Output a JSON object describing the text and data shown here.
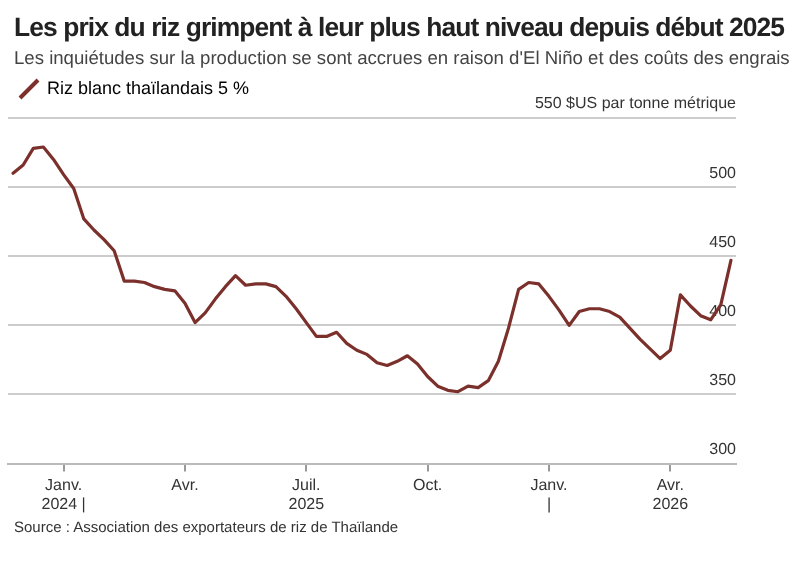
{
  "chart_data": {
    "type": "line",
    "title": "Les prix du riz grimpent à leur plus haut niveau depuis début 2025",
    "subtitle": "Les inquiétudes sur la production se sont accrues en raison d'El Niño et des coûts des engrais",
    "annotations": [
      "Source : Association des exportateurs de riz de Thaïlande"
    ],
    "categories": [
      null,
      null,
      null,
      null,
      null,
      "Janv.\n2024 |",
      null,
      null,
      null,
      null,
      null,
      null,
      null,
      null,
      null,
      null,
      null,
      "Avr.",
      null,
      null,
      null,
      null,
      null,
      null,
      null,
      null,
      null,
      null,
      null,
      "Juil.\n2025",
      null,
      null,
      null,
      null,
      null,
      null,
      null,
      null,
      null,
      null,
      null,
      "Oct.",
      null,
      null,
      null,
      null,
      null,
      null,
      null,
      null,
      null,
      null,
      null,
      "Janv.\n|",
      null,
      null,
      null,
      null,
      null,
      null,
      null,
      null,
      null,
      null,
      null,
      "Avr.\n2026",
      null,
      null,
      null,
      null,
      null,
      null
    ],
    "series": [
      {
        "name": "Riz blanc thaïlandais 5 %",
        "color": "#7b302b",
        "values": [
          510,
          516,
          528,
          529,
          520,
          509,
          499,
          477,
          469,
          462,
          454,
          432,
          432,
          431,
          428,
          426,
          425,
          416,
          402,
          409,
          419,
          428,
          436,
          429,
          430,
          430,
          428,
          421,
          412,
          402,
          392,
          392,
          395,
          387,
          382,
          379,
          373,
          371,
          374,
          378,
          372,
          363,
          356,
          353,
          352,
          356,
          355,
          360,
          374,
          398,
          426,
          431,
          430,
          421,
          411,
          400,
          410,
          412,
          412,
          410,
          406,
          398,
          390,
          383,
          376,
          382,
          422,
          414,
          407,
          404,
          415,
          447
        ]
      }
    ],
    "ylim": [
      300,
      550
    ],
    "yticks": [
      300,
      350,
      400,
      450,
      500,
      {
        "value": 550,
        "label": "550 $US par tonne métrique"
      }
    ],
    "grid": "y",
    "legend": "top left",
    "marker": "none",
    "line_style": "solid"
  }
}
